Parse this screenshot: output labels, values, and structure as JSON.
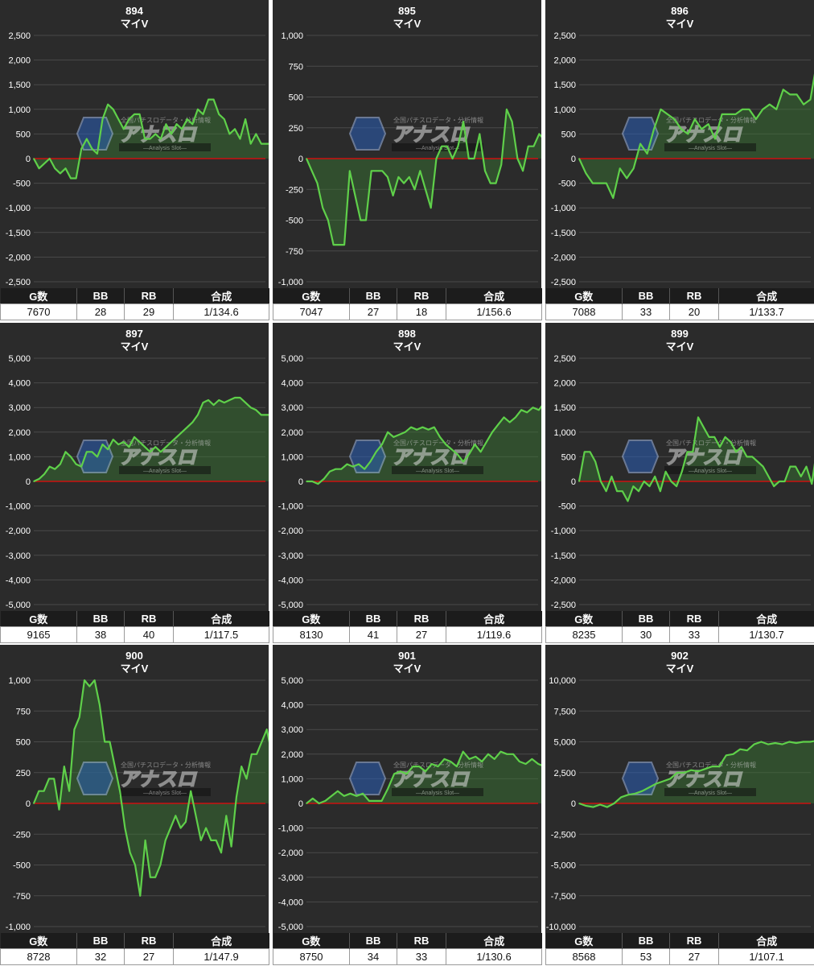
{
  "headers": {
    "games": "G数",
    "bb": "BB",
    "rb": "RB",
    "combined": "合成"
  },
  "colors": {
    "line": "#5fd04a",
    "fill": "#3a7a32",
    "zero": "#cc1111",
    "grid": "#4a4a4a",
    "panel": "#2b2b2b"
  },
  "watermark": {
    "logo": "アナスロ",
    "tagline": "全国パチスロデータ・分析情報",
    "sub": "—Analysis Slot—"
  },
  "machines": [
    {
      "number": "894",
      "model": "マイV",
      "stats": {
        "games": "7670",
        "bb": "28",
        "rb": "29",
        "combined": "1/134.6"
      },
      "chart_data": {
        "type": "area",
        "ylim": [
          -2500,
          2500
        ],
        "yticks": [
          "2,500",
          "2,000",
          "1,500",
          "1,000",
          "500",
          "0",
          "-500",
          "-1,000",
          "-1,500",
          "-2,000",
          "-2,500"
        ],
        "values": [
          0,
          -200,
          -100,
          0,
          -200,
          -300,
          -200,
          -400,
          -400,
          200,
          400,
          200,
          100,
          800,
          1100,
          1000,
          800,
          600,
          800,
          900,
          900,
          400,
          400,
          500,
          400,
          700,
          500,
          700,
          600,
          800,
          700,
          1000,
          900,
          1200,
          1200,
          900,
          800,
          500,
          600,
          400,
          800,
          300,
          500,
          300,
          300,
          300
        ]
      }
    },
    {
      "number": "895",
      "model": "マイV",
      "stats": {
        "games": "7047",
        "bb": "27",
        "rb": "18",
        "combined": "1/156.6"
      },
      "chart_data": {
        "type": "area",
        "ylim": [
          -1000,
          1000
        ],
        "yticks": [
          "1,000",
          "750",
          "500",
          "250",
          "0",
          "-250",
          "-500",
          "-750",
          "-1,000"
        ],
        "values": [
          0,
          -100,
          -200,
          -400,
          -500,
          -700,
          -700,
          -700,
          -100,
          -300,
          -500,
          -500,
          -100,
          -100,
          -100,
          -150,
          -300,
          -150,
          -200,
          -150,
          -250,
          -100,
          -250,
          -400,
          0,
          100,
          100,
          0,
          100,
          300,
          0,
          0,
          200,
          -100,
          -200,
          -200,
          -50,
          400,
          300,
          0,
          -100,
          100,
          100,
          200,
          150
        ]
      }
    },
    {
      "number": "896",
      "model": "マイV",
      "stats": {
        "games": "7088",
        "bb": "33",
        "rb": "20",
        "combined": "1/133.7"
      },
      "chart_data": {
        "type": "area",
        "ylim": [
          -2500,
          2500
        ],
        "yticks": [
          "2,500",
          "2,000",
          "1,500",
          "1,000",
          "500",
          "0",
          "-500",
          "-1,000",
          "-1,500",
          "-2,000",
          "-2,500"
        ],
        "values": [
          0,
          -300,
          -500,
          -500,
          -500,
          -800,
          -200,
          -400,
          -200,
          300,
          100,
          600,
          1000,
          900,
          800,
          600,
          500,
          800,
          600,
          700,
          400,
          900,
          900,
          900,
          1000,
          1000,
          800,
          1000,
          1100,
          1000,
          1400,
          1300,
          1300,
          1100,
          1200,
          2000
        ]
      }
    },
    {
      "number": "897",
      "model": "マイV",
      "stats": {
        "games": "9165",
        "bb": "38",
        "rb": "40",
        "combined": "1/117.5"
      },
      "chart_data": {
        "type": "area",
        "ylim": [
          -5000,
          5000
        ],
        "yticks": [
          "5,000",
          "4,000",
          "3,000",
          "2,000",
          "1,000",
          "0",
          "-1,000",
          "-2,000",
          "-3,000",
          "-4,000",
          "-5,000"
        ],
        "values": [
          0,
          100,
          300,
          600,
          500,
          700,
          1200,
          1000,
          700,
          600,
          1200,
          1200,
          1000,
          1500,
          1300,
          1700,
          1500,
          1600,
          1400,
          1800,
          1600,
          1400,
          1200,
          1400,
          1200,
          1400,
          1600,
          1800,
          2000,
          2200,
          2400,
          2700,
          3200,
          3300,
          3100,
          3300,
          3200,
          3300,
          3400,
          3400,
          3200,
          3000,
          2900,
          2700,
          2700,
          2700
        ]
      }
    },
    {
      "number": "898",
      "model": "マイV",
      "stats": {
        "games": "8130",
        "bb": "41",
        "rb": "27",
        "combined": "1/119.6"
      },
      "chart_data": {
        "type": "area",
        "ylim": [
          -5000,
          5000
        ],
        "yticks": [
          "5,000",
          "4,000",
          "3,000",
          "2,000",
          "1,000",
          "0",
          "-1,000",
          "-2,000",
          "-3,000",
          "-4,000",
          "-5,000"
        ],
        "values": [
          0,
          0,
          -100,
          100,
          400,
          500,
          500,
          700,
          600,
          700,
          500,
          800,
          1200,
          1500,
          2000,
          1800,
          1900,
          2000,
          2200,
          2100,
          2200,
          2100,
          2200,
          1800,
          1500,
          1300,
          1100,
          800,
          1100,
          1500,
          1200,
          1600,
          2000,
          2300,
          2600,
          2400,
          2600,
          2900,
          2800,
          3000,
          2900,
          3200
        ]
      }
    },
    {
      "number": "899",
      "model": "マイV",
      "stats": {
        "games": "8235",
        "bb": "30",
        "rb": "33",
        "combined": "1/130.7"
      },
      "chart_data": {
        "type": "area",
        "ylim": [
          -2500,
          2500
        ],
        "yticks": [
          "2,500",
          "2,000",
          "1,500",
          "1,000",
          "500",
          "0",
          "-500",
          "-1,000",
          "-1,500",
          "-2,000",
          "-2,500"
        ],
        "values": [
          0,
          600,
          600,
          400,
          0,
          -200,
          100,
          -200,
          -200,
          -400,
          -100,
          -200,
          0,
          -100,
          100,
          -200,
          200,
          0,
          -100,
          200,
          600,
          600,
          1300,
          1100,
          900,
          900,
          700,
          900,
          800,
          600,
          700,
          500,
          500,
          400,
          300,
          100,
          -100,
          0,
          0,
          300,
          300,
          100,
          300,
          -50,
          700
        ]
      }
    },
    {
      "number": "900",
      "model": "マイV",
      "stats": {
        "games": "8728",
        "bb": "32",
        "rb": "27",
        "combined": "1/147.9"
      },
      "chart_data": {
        "type": "area",
        "ylim": [
          -1000,
          1000
        ],
        "yticks": [
          "1,000",
          "750",
          "500",
          "250",
          "0",
          "-250",
          "-500",
          "-750",
          "-1,000"
        ],
        "values": [
          0,
          100,
          100,
          200,
          200,
          -50,
          300,
          100,
          600,
          700,
          1000,
          950,
          1000,
          800,
          500,
          500,
          300,
          100,
          -200,
          -400,
          -500,
          -750,
          -300,
          -600,
          -600,
          -500,
          -300,
          -200,
          -100,
          -200,
          -150,
          100,
          -100,
          -300,
          -200,
          -300,
          -300,
          -400,
          -100,
          -350,
          50,
          300,
          200,
          400,
          400,
          500,
          600,
          400
        ]
      }
    },
    {
      "number": "901",
      "model": "マイV",
      "stats": {
        "games": "8750",
        "bb": "34",
        "rb": "33",
        "combined": "1/130.6"
      },
      "chart_data": {
        "type": "area",
        "ylim": [
          -5000,
          5000
        ],
        "yticks": [
          "5,000",
          "4,000",
          "3,000",
          "2,000",
          "1,000",
          "0",
          "-1,000",
          "-2,000",
          "-3,000",
          "-4,000",
          "-5,000"
        ],
        "values": [
          0,
          200,
          0,
          100,
          300,
          500,
          300,
          400,
          300,
          400,
          100,
          100,
          100,
          600,
          1200,
          1300,
          1200,
          1500,
          1500,
          1300,
          1600,
          1500,
          1800,
          1700,
          1500,
          2100,
          1800,
          1900,
          1700,
          2000,
          1800,
          2100,
          2000,
          2000,
          1700,
          1600,
          1800,
          1600,
          1500
        ]
      }
    },
    {
      "number": "902",
      "model": "マイV",
      "stats": {
        "games": "8568",
        "bb": "53",
        "rb": "27",
        "combined": "1/107.1"
      },
      "chart_data": {
        "type": "area",
        "ylim": [
          -10000,
          10000
        ],
        "yticks": [
          "10,000",
          "7,500",
          "5,000",
          "2,500",
          "0",
          "-2,500",
          "-5,000",
          "-7,500",
          "-10,000"
        ],
        "values": [
          0,
          -200,
          -300,
          -100,
          -300,
          0,
          500,
          700,
          800,
          1000,
          1300,
          1600,
          1800,
          2000,
          2500,
          2500,
          2700,
          2600,
          2800,
          3000,
          3000,
          3900,
          4000,
          4400,
          4300,
          4800,
          5000,
          4800,
          4900,
          4800,
          5000,
          4900,
          5000,
          5000,
          5100
        ]
      }
    }
  ]
}
